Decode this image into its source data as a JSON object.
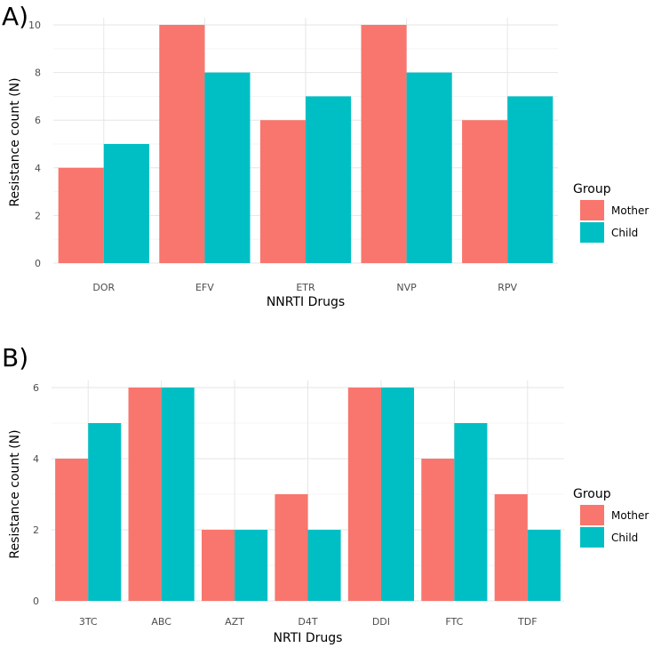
{
  "chart_data": [
    {
      "panel_label": "A)",
      "type": "bar",
      "categories": [
        "DOR",
        "EFV",
        "ETR",
        "NVP",
        "RPV"
      ],
      "series": [
        {
          "name": "Mother",
          "color": "#F8766D",
          "values": [
            4,
            10,
            6,
            10,
            6
          ]
        },
        {
          "name": "Child",
          "color": "#00BFC4",
          "values": [
            5,
            8,
            7,
            8,
            7
          ]
        }
      ],
      "xlabel": "NNRTI Drugs",
      "ylabel": "Resistance count (N)",
      "ylim": [
        0,
        10
      ],
      "yticks": [
        0,
        2,
        4,
        6,
        8,
        10
      ],
      "grid": true,
      "legend": {
        "title": "Group",
        "placement": "right"
      }
    },
    {
      "panel_label": "B)",
      "type": "bar",
      "categories": [
        "3TC",
        "ABC",
        "AZT",
        "D4T",
        "DDI",
        "FTC",
        "TDF"
      ],
      "series": [
        {
          "name": "Mother",
          "color": "#F8766D",
          "values": [
            4,
            6,
            2,
            3,
            6,
            4,
            3
          ]
        },
        {
          "name": "Child",
          "color": "#00BFC4",
          "values": [
            5,
            6,
            2,
            2,
            6,
            5,
            2
          ]
        }
      ],
      "xlabel": "NRTI Drugs",
      "ylabel": "Resistance count (N)",
      "ylim": [
        0,
        6
      ],
      "yticks": [
        0,
        2,
        4,
        6
      ],
      "grid": true,
      "legend": {
        "title": "Group",
        "placement": "right"
      }
    }
  ]
}
